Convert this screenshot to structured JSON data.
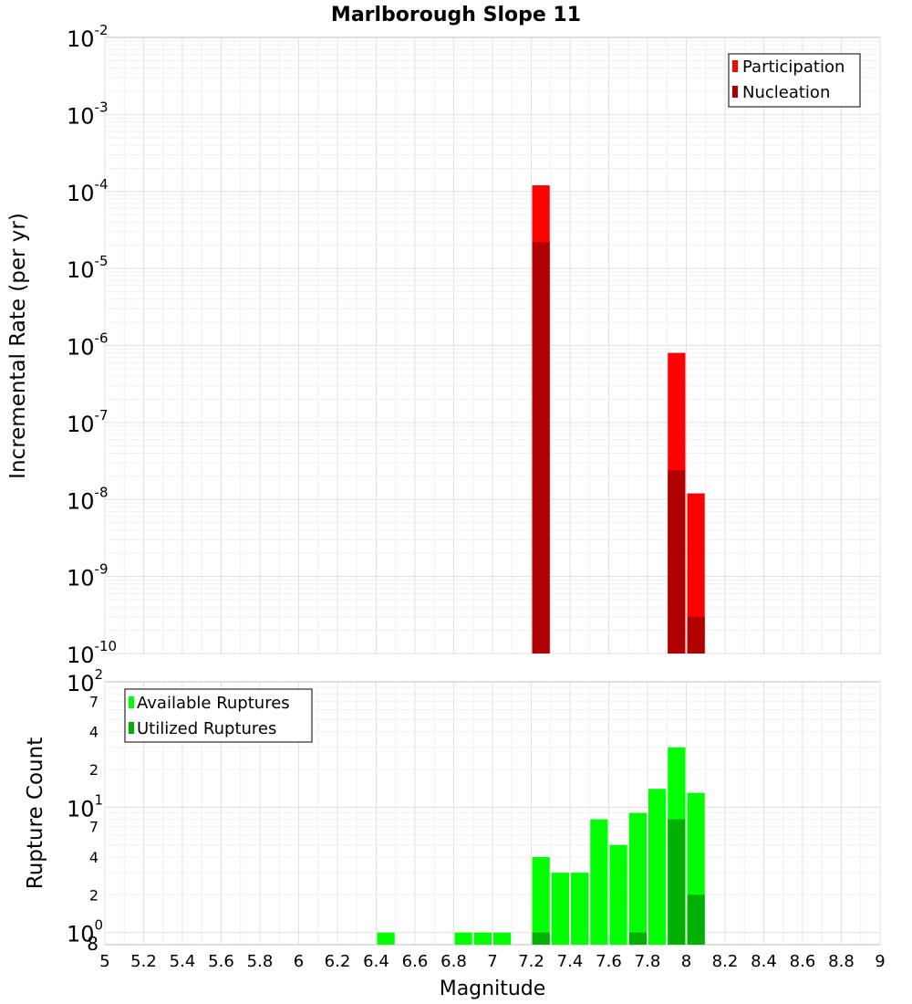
{
  "chart_data": [
    {
      "type": "bar",
      "title": "Marlborough Slope 11",
      "xlabel": "Magnitude",
      "ylabel": "Incremental Rate (per yr)",
      "yscale": "log",
      "xlim": [
        5,
        9
      ],
      "ylim": [
        1e-10,
        0.01
      ],
      "bin_width": 0.1,
      "legend_position": "top-right",
      "x_ticks": [
        "5",
        "5.2",
        "5.4",
        "5.6",
        "5.8",
        "6",
        "6.2",
        "6.4",
        "6.6",
        "6.8",
        "7",
        "7.2",
        "7.4",
        "7.6",
        "7.8",
        "8",
        "8.2",
        "8.4",
        "8.6",
        "8.8",
        "9"
      ],
      "y_ticks": [
        {
          "exp": -2,
          "base": "10",
          "sup": "-2"
        },
        {
          "exp": -3,
          "base": "10",
          "sup": "-3"
        },
        {
          "exp": -4,
          "base": "10",
          "sup": "-4"
        },
        {
          "exp": -5,
          "base": "10",
          "sup": "-5"
        },
        {
          "exp": -6,
          "base": "10",
          "sup": "-6"
        },
        {
          "exp": -7,
          "base": "10",
          "sup": "-7"
        },
        {
          "exp": -8,
          "base": "10",
          "sup": "-8"
        },
        {
          "exp": -9,
          "base": "10",
          "sup": "-9"
        },
        {
          "exp": -10,
          "base": "10",
          "sup": "-10"
        }
      ],
      "series": [
        {
          "name": "Participation",
          "color": "#ff0000",
          "x": [
            7.25,
            7.95,
            8.05
          ],
          "values": [
            0.00012,
            8e-07,
            1.2e-08
          ]
        },
        {
          "name": "Nucleation",
          "color": "#b00000",
          "x": [
            7.25,
            7.95,
            8.05
          ],
          "values": [
            2.2e-05,
            2.4e-08,
            3e-10
          ]
        }
      ]
    },
    {
      "type": "bar",
      "title": "",
      "xlabel": "Magnitude",
      "ylabel": "Rupture Count",
      "yscale": "log",
      "xlim": [
        5,
        9
      ],
      "ylim": [
        0.8,
        100
      ],
      "bin_width": 0.1,
      "legend_position": "top-left",
      "y_ticks": [
        {
          "value": 100,
          "base": "10",
          "sup": "2"
        },
        {
          "value": 70,
          "label": "7"
        },
        {
          "value": 40,
          "label": "4"
        },
        {
          "value": 20,
          "label": "2"
        },
        {
          "value": 10,
          "base": "10",
          "sup": "1"
        },
        {
          "value": 7,
          "label": "7"
        },
        {
          "value": 4,
          "label": "4"
        },
        {
          "value": 2,
          "label": "2"
        },
        {
          "value": 1,
          "base": "10",
          "sup": "0"
        },
        {
          "value": 0.8,
          "label": "8"
        }
      ],
      "series": [
        {
          "name": "Available Ruptures",
          "color": "#00ff00",
          "x": [
            6.45,
            6.85,
            6.95,
            7.05,
            7.25,
            7.35,
            7.45,
            7.55,
            7.65,
            7.75,
            7.85,
            7.95,
            8.05
          ],
          "values": [
            1,
            1,
            1,
            1,
            4,
            3,
            3,
            8,
            5,
            9,
            14,
            30,
            13
          ]
        },
        {
          "name": "Utilized Ruptures",
          "color": "#00b000",
          "x": [
            7.25,
            7.75,
            7.95,
            8.05
          ],
          "values": [
            1,
            1,
            8,
            2
          ]
        }
      ]
    }
  ]
}
